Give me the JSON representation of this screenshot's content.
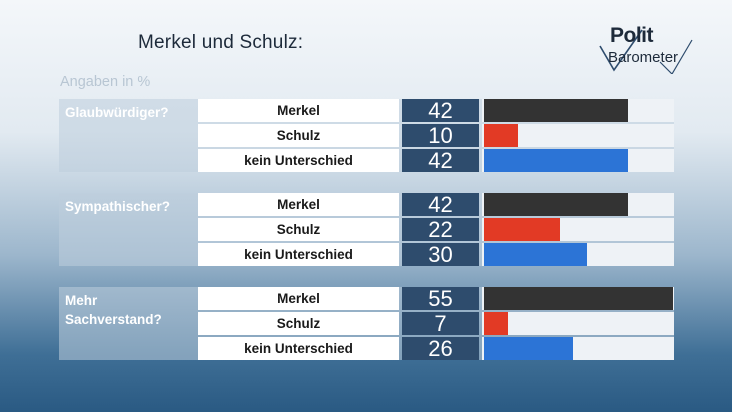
{
  "title": "Merkel und Schulz:",
  "logo": {
    "line1": "Polit",
    "line2": "Barometer"
  },
  "unit_note": "Angaben in %",
  "colors": {
    "Merkel": "#333333",
    "Schulz": "#e23a25",
    "kein Unterschied": "#2c74d6"
  },
  "chart_data": {
    "type": "bar",
    "orientation": "horizontal",
    "title": "Merkel und Schulz:",
    "subtitle": "Angaben in %",
    "xlim": [
      0,
      55
    ],
    "groups": [
      {
        "question": "Glaubwürdiger?",
        "rows": [
          {
            "label": "Merkel",
            "value": 42
          },
          {
            "label": "Schulz",
            "value": 10
          },
          {
            "label": "kein Unterschied",
            "value": 42
          }
        ]
      },
      {
        "question": "Sympathischer?",
        "rows": [
          {
            "label": "Merkel",
            "value": 42
          },
          {
            "label": "Schulz",
            "value": 22
          },
          {
            "label": "kein Unterschied",
            "value": 30
          }
        ]
      },
      {
        "question": "Mehr Sachverstand?",
        "rows": [
          {
            "label": "Merkel",
            "value": 55
          },
          {
            "label": "Schulz",
            "value": 7
          },
          {
            "label": "kein Unterschied",
            "value": 26
          }
        ]
      }
    ]
  }
}
